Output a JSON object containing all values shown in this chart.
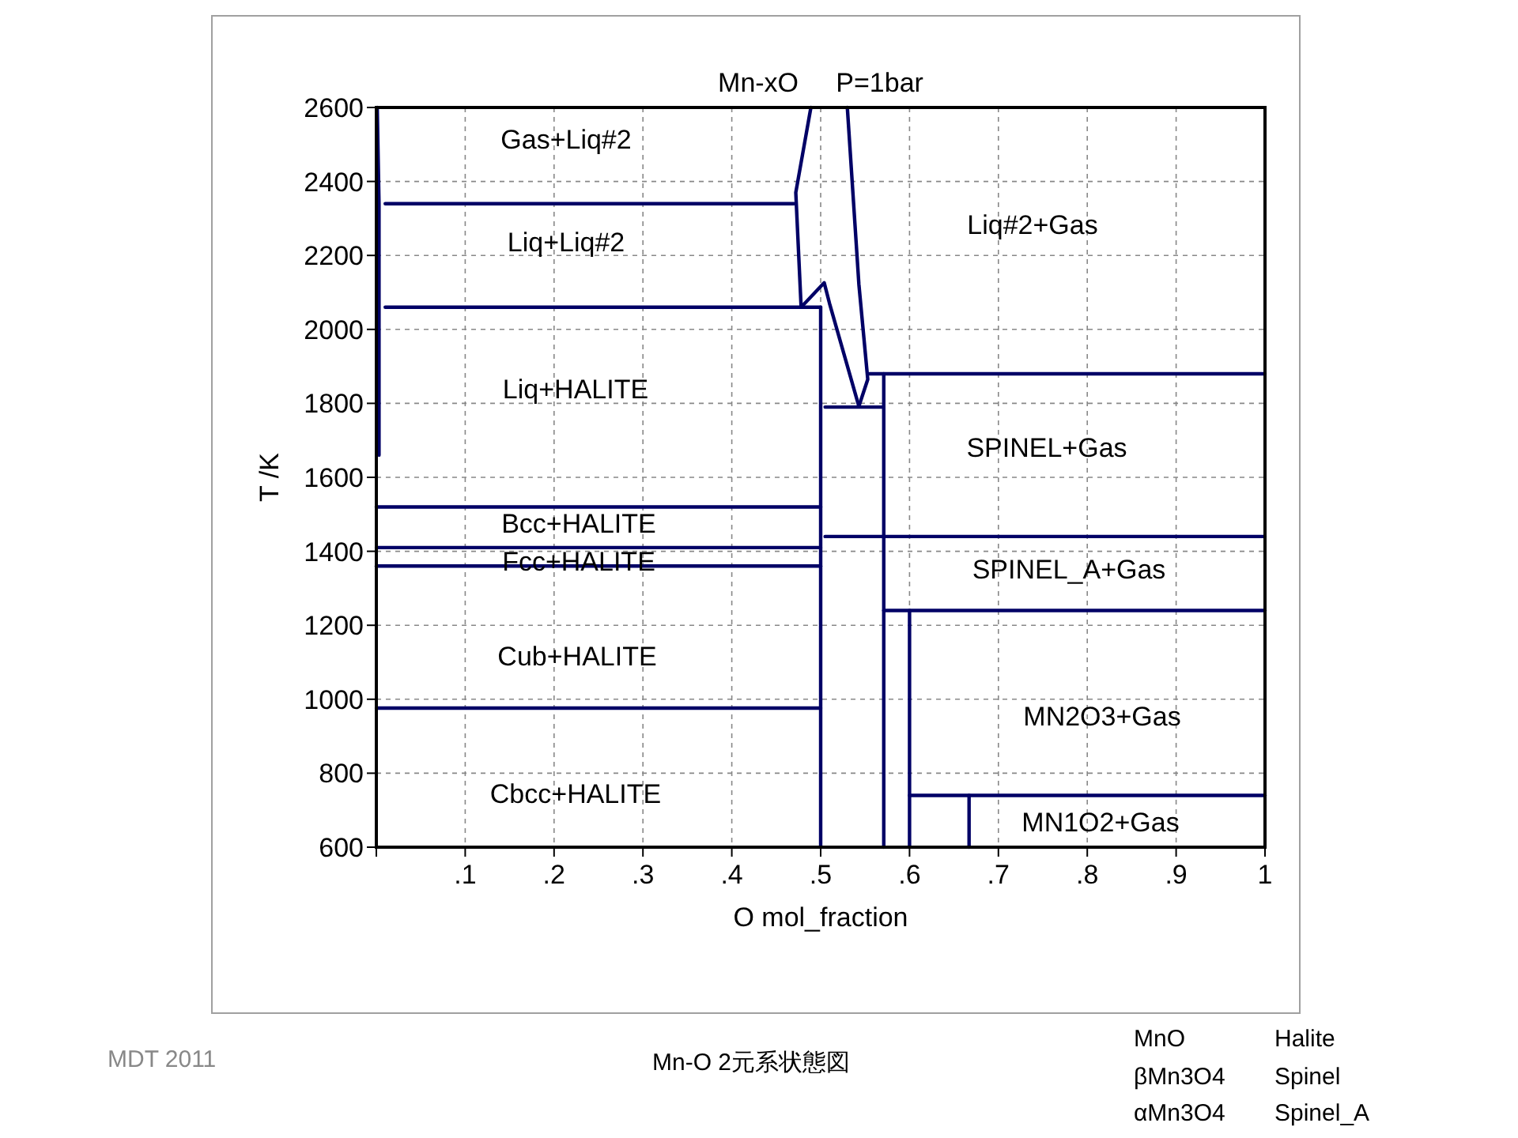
{
  "chart_data": {
    "type": "line",
    "title": "Mn-xO     P=1bar",
    "xlabel": "O mol_fraction",
    "ylabel": "T /K",
    "xlim": [
      0,
      1
    ],
    "ylim": [
      600,
      2600
    ],
    "xticks": [
      {
        "value": 0,
        "label": null
      },
      {
        "value": 0.1,
        "label": ".1"
      },
      {
        "value": 0.2,
        "label": ".2"
      },
      {
        "value": 0.3,
        "label": ".3"
      },
      {
        "value": 0.4,
        "label": ".4"
      },
      {
        "value": 0.5,
        "label": ".5"
      },
      {
        "value": 0.6,
        "label": ".6"
      },
      {
        "value": 0.7,
        "label": ".7"
      },
      {
        "value": 0.8,
        "label": ".8"
      },
      {
        "value": 0.9,
        "label": ".9"
      },
      1
    ],
    "yticks": [
      600,
      800,
      1000,
      1200,
      1400,
      1600,
      1800,
      2000,
      2200,
      2400,
      2600
    ],
    "grid": true,
    "line_style": "solid",
    "marker": "none",
    "series": [
      {
        "color": "#000066",
        "x": [
          0.003,
          0.003,
          0.001
        ],
        "values": [
          1660,
          2340,
          2600
        ]
      },
      {
        "color": "#000066",
        "x": [
          0.01,
          0.47
        ],
        "values": [
          2340,
          2340
        ]
      },
      {
        "color": "#000066",
        "x": [
          0.01,
          0.5
        ],
        "values": [
          2060,
          2060
        ]
      },
      {
        "color": "#000066",
        "x": [
          0.489,
          0.472,
          0.478
        ],
        "values": [
          2600,
          2370,
          2060
        ]
      },
      {
        "color": "#000066",
        "x": [
          0.478,
          0.504,
          0.51,
          0.543
        ],
        "values": [
          2060,
          2126,
          2070,
          1792
        ]
      },
      {
        "color": "#000066",
        "x": [
          0.53,
          0.543,
          0.553,
          0.543
        ],
        "values": [
          2600,
          2122,
          1865,
          1792
        ]
      },
      {
        "color": "#000066",
        "x": [
          0.5,
          0.5
        ],
        "values": [
          600,
          2060
        ]
      },
      {
        "color": "#000066",
        "x": [
          0.505,
          0.571
        ],
        "values": [
          1790,
          1790
        ]
      },
      {
        "color": "#000066",
        "x": [
          0.555,
          1
        ],
        "values": [
          1880,
          1880
        ]
      },
      {
        "color": "#000066",
        "x": [
          0.571,
          0.571
        ],
        "values": [
          600,
          1880
        ]
      },
      {
        "color": "#000066",
        "x": [
          0,
          0.5
        ],
        "values": [
          1520,
          1520
        ]
      },
      {
        "color": "#000066",
        "x": [
          0,
          0.5
        ],
        "values": [
          1410,
          1410
        ]
      },
      {
        "color": "#000066",
        "x": [
          0,
          0.5
        ],
        "values": [
          1360,
          1360
        ]
      },
      {
        "color": "#000066",
        "x": [
          0,
          0.5
        ],
        "values": [
          976,
          976
        ]
      },
      {
        "color": "#000066",
        "x": [
          0.505,
          1
        ],
        "values": [
          1440,
          1440
        ]
      },
      {
        "color": "#000066",
        "x": [
          0.571,
          1
        ],
        "values": [
          1240,
          1240
        ]
      },
      {
        "color": "#000066",
        "x": [
          0.6,
          0.6
        ],
        "values": [
          600,
          1240
        ]
      },
      {
        "color": "#000066",
        "x": [
          0.6,
          1
        ],
        "values": [
          740,
          740
        ]
      },
      {
        "color": "#000066",
        "x": [
          0.667,
          0.667
        ],
        "values": [
          600,
          740
        ]
      }
    ],
    "annotations": [
      "Gas+Liq#2",
      "Liq+Liq#2",
      "Liq+HALITE",
      "Liq#2+Gas",
      "SPINEL+Gas",
      "Bcc+HALITE",
      "Fcc+HALITE",
      "SPINEL_A+Gas",
      "Cub+HALITE",
      "MN2O3+Gas",
      "Cbcc+HALITE",
      "MN1O2+Gas",
      "Mn-O 2元系状態図",
      "MDT  2011",
      "MnO",
      "Halite",
      "βMn3O4",
      "Spinel",
      "αMn3O4",
      "Spinel_A"
    ]
  }
}
